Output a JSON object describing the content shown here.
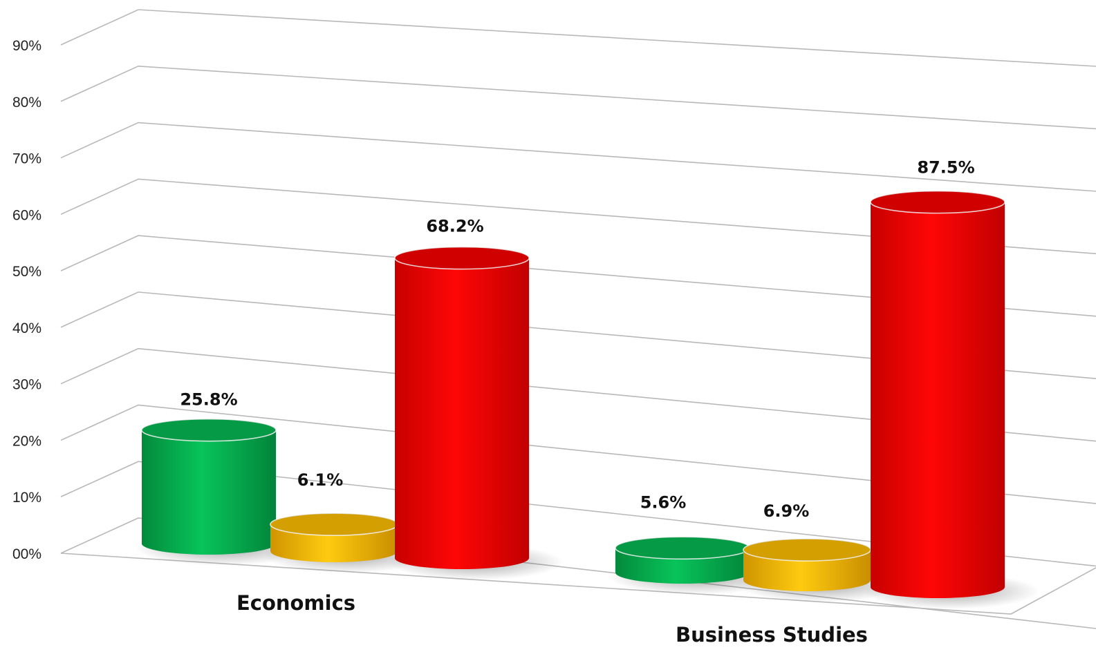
{
  "chart_data": {
    "type": "bar",
    "style": "3d-cylinder",
    "categories": [
      "Economics",
      "Business Studies"
    ],
    "series": [
      {
        "color": "#06b050",
        "values": [
          25.8,
          5.6
        ]
      },
      {
        "color": "#f2b500",
        "values": [
          6.1,
          6.9
        ]
      },
      {
        "color": "#ee0000",
        "values": [
          68.2,
          87.5
        ]
      }
    ],
    "data_labels": [
      [
        "25.8%",
        "6.1%",
        "68.2%"
      ],
      [
        "5.6%",
        "6.9%",
        "87.5%"
      ]
    ],
    "y_ticks": [
      "00%",
      "10%",
      "20%",
      "30%",
      "40%",
      "50%",
      "60%",
      "70%",
      "80%",
      "90%"
    ],
    "ylim": [
      0,
      90
    ],
    "grid": true,
    "legend": "none"
  }
}
